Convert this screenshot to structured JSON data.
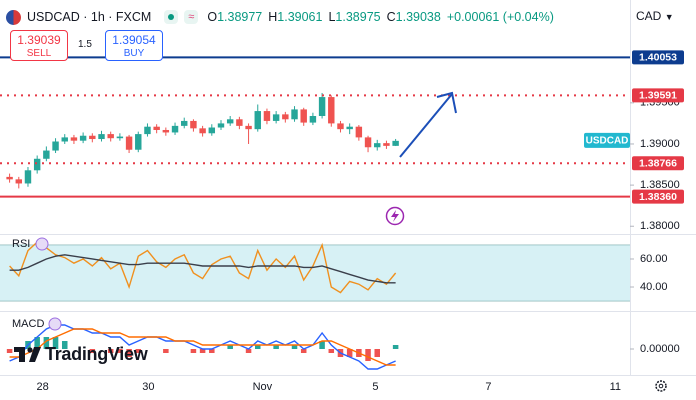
{
  "header": {
    "symbol": "USDCAD · 1h · FXCM",
    "o_label": "O",
    "h_label": "H",
    "l_label": "L",
    "c_label": "C",
    "change": "+0.00061 (+0.04%)"
  },
  "trade": {
    "sell_price": "1.39039",
    "sell_label": "SELL",
    "spread": "1.5",
    "buy_price": "1.39054",
    "buy_label": "BUY"
  },
  "currency": "CAD",
  "brand": "TradingView",
  "chart_data": [
    {
      "type": "candlestick",
      "label": "USDCAD",
      "label_color": "#22b8cf",
      "up_color": "#26a69a",
      "down_color": "#ef5350",
      "grid": false,
      "xlim": [
        0,
        68
      ],
      "xticks": [
        {
          "value": 4.1,
          "label": "28"
        },
        {
          "value": 15.6,
          "label": "30"
        },
        {
          "value": 28,
          "label": "Nov"
        },
        {
          "value": 40.3,
          "label": "5"
        },
        {
          "value": 52.6,
          "label": "7"
        },
        {
          "value": 66.4,
          "label": "11"
        }
      ],
      "ylim": [
        1.3793,
        1.4075
      ],
      "yticks": [
        {
          "value": 1.38,
          "label": "1.38000"
        },
        {
          "value": 1.385,
          "label": "1.38500"
        },
        {
          "value": 1.39,
          "label": "1.39000"
        },
        {
          "value": 1.395,
          "label": "1.39500"
        }
      ],
      "levels": [
        {
          "value": 1.40053,
          "label": "1.40053",
          "color": "#0d3c8f",
          "style": "solid"
        },
        {
          "value": 1.39591,
          "label": "1.39591",
          "color": "#e53946",
          "style": "dotted"
        },
        {
          "value": 1.38766,
          "label": "1.38766",
          "color": "#e53946",
          "style": "dotted"
        },
        {
          "value": 1.3836,
          "label": "1.38360",
          "color": "#e53946",
          "style": "solid"
        }
      ],
      "open": [
        1.386,
        1.3857,
        1.3852,
        1.3868,
        1.3882,
        1.3892,
        1.3903,
        1.3908,
        1.3904,
        1.391,
        1.3906,
        1.3912,
        1.3907,
        1.3909,
        1.3893,
        1.3912,
        1.3921,
        1.3917,
        1.3914,
        1.3922,
        1.3928,
        1.3919,
        1.3913,
        1.392,
        1.3925,
        1.393,
        1.3922,
        1.3918,
        1.394,
        1.3928,
        1.3936,
        1.393,
        1.3942,
        1.3926,
        1.3934,
        1.3957,
        1.3925,
        1.3918,
        1.3921,
        1.3908,
        1.3896,
        1.3901,
        1.38977
      ],
      "high": [
        1.3864,
        1.386,
        1.3872,
        1.3886,
        1.3897,
        1.3907,
        1.3912,
        1.3911,
        1.3914,
        1.3913,
        1.3916,
        1.3915,
        1.3913,
        1.3911,
        1.3915,
        1.3925,
        1.3924,
        1.392,
        1.3926,
        1.3932,
        1.393,
        1.3922,
        1.3924,
        1.3929,
        1.3934,
        1.3933,
        1.3925,
        1.3948,
        1.3943,
        1.394,
        1.3939,
        1.3946,
        1.3944,
        1.3938,
        1.3962,
        1.3959,
        1.3928,
        1.3925,
        1.3923,
        1.391,
        1.3905,
        1.3904,
        1.39061
      ],
      "low": [
        1.3853,
        1.3846,
        1.3848,
        1.3864,
        1.3879,
        1.3889,
        1.39,
        1.39,
        1.3901,
        1.3902,
        1.3903,
        1.3903,
        1.3904,
        1.3889,
        1.389,
        1.3909,
        1.3913,
        1.391,
        1.3911,
        1.3919,
        1.3915,
        1.3909,
        1.391,
        1.3917,
        1.3922,
        1.3918,
        1.39,
        1.3915,
        1.3924,
        1.3925,
        1.3926,
        1.3927,
        1.3922,
        1.3923,
        1.3931,
        1.3921,
        1.3914,
        1.3912,
        1.3904,
        1.389,
        1.3892,
        1.3894,
        1.38975
      ],
      "close": [
        1.3857,
        1.3852,
        1.3868,
        1.3882,
        1.3892,
        1.3903,
        1.3908,
        1.3904,
        1.391,
        1.3906,
        1.3912,
        1.3907,
        1.3909,
        1.3893,
        1.3912,
        1.3921,
        1.3917,
        1.3914,
        1.3922,
        1.3928,
        1.3919,
        1.3913,
        1.392,
        1.3925,
        1.393,
        1.3922,
        1.3918,
        1.394,
        1.3928,
        1.3936,
        1.393,
        1.3942,
        1.3926,
        1.3934,
        1.3957,
        1.3925,
        1.3918,
        1.3921,
        1.3908,
        1.3896,
        1.3901,
        1.38977,
        1.39038
      ]
    },
    {
      "type": "line",
      "title": "RSI",
      "ylim": [
        23.6,
        76.4
      ],
      "band": [
        30,
        70
      ],
      "band_color": "#d7f1f5",
      "yticks": [
        {
          "value": 60,
          "label": "60.00"
        },
        {
          "value": 40,
          "label": "40.00"
        }
      ],
      "series": [
        {
          "color": "#f0901e",
          "values": [
            55,
            48,
            66,
            72,
            68,
            63,
            61,
            57,
            60,
            55,
            61,
            53,
            57,
            40,
            62,
            66,
            58,
            54,
            60,
            63,
            50,
            46,
            56,
            60,
            62,
            50,
            46,
            66,
            52,
            60,
            54,
            62,
            45,
            55,
            70,
            40,
            36,
            44,
            42,
            38,
            46,
            42,
            50
          ]
        },
        {
          "color": "#3a3f4b",
          "values": [
            52,
            52,
            54,
            57,
            60,
            62,
            63,
            62,
            61,
            60,
            59,
            58,
            57,
            56,
            56,
            57,
            57,
            57,
            57,
            57,
            56,
            55,
            55,
            55,
            55,
            55,
            54,
            55,
            55,
            55,
            55,
            55,
            54,
            54,
            55,
            53,
            51,
            49,
            47,
            45,
            44,
            43,
            43
          ]
        }
      ]
    },
    {
      "type": "line",
      "title": "MACD",
      "ylim": [
        -0.000575,
        0.000925
      ],
      "yticks": [
        {
          "value": 0,
          "label": "0.00000"
        }
      ],
      "series": [
        {
          "style": "histogram",
          "color": "#26a69a",
          "down_color": "#ef5350",
          "values": [
            -0.0001,
            0,
            0.0002,
            0.0003,
            0.0003,
            0.0003,
            0.0002,
            0,
            0,
            -0.0001,
            0,
            -0.0001,
            -0.0001,
            -0.0002,
            -0.0001,
            0,
            0,
            -0.0001,
            0,
            0,
            -0.0001,
            -0.0001,
            -0.0001,
            0,
            0.0001,
            0,
            -0.0001,
            0.0001,
            0,
            0.0001,
            0,
            0.0001,
            -0.0001,
            0,
            0.0002,
            -0.0001,
            -0.0002,
            -0.0002,
            -0.0002,
            -0.0003,
            -0.0002,
            0,
            0.0001
          ]
        },
        {
          "color": "#2962ff",
          "values": [
            -0.0003,
            -0.0002,
            0.0001,
            0.0003,
            0.0005,
            0.0006,
            0.0006,
            0.0005,
            0.0005,
            0.0004,
            0.0004,
            0.0003,
            0.0003,
            0.0001,
            0.0002,
            0.0003,
            0.0003,
            0.0002,
            0.0002,
            0.0002,
            0.0001,
            0,
            0,
            0.0001,
            0.0002,
            0.0001,
            0,
            0.0002,
            0.0001,
            0.0002,
            0.0001,
            0.0002,
            0,
            0.0001,
            0.0004,
            0.0001,
            -0.0001,
            -0.0002,
            -0.0003,
            -0.0005,
            -0.0005,
            -0.0004,
            -0.0003
          ]
        },
        {
          "color": "#ff6d00",
          "values": [
            -0.0002,
            -0.0002,
            -0.0001,
            0,
            0.0002,
            0.0003,
            0.0004,
            0.0005,
            0.0005,
            0.0005,
            0.0004,
            0.0004,
            0.0004,
            0.0003,
            0.0003,
            0.0003,
            0.0003,
            0.0003,
            0.0002,
            0.0002,
            0.0002,
            0.0001,
            0.0001,
            0.0001,
            0.0001,
            0.0001,
            0.0001,
            0.0001,
            0.0001,
            0.0001,
            0.0001,
            0.0001,
            0.0001,
            0.0001,
            0.0002,
            0.0002,
            0.0001,
            0,
            -0.0001,
            -0.0002,
            -0.0003,
            -0.0004,
            -0.0004
          ]
        }
      ]
    }
  ]
}
